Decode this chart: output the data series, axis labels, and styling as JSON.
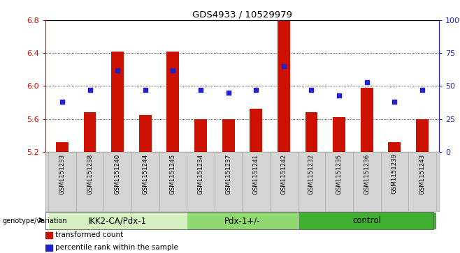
{
  "title": "GDS4933 / 10529979",
  "samples": [
    "GSM1151233",
    "GSM1151238",
    "GSM1151240",
    "GSM1151244",
    "GSM1151245",
    "GSM1151234",
    "GSM1151237",
    "GSM1151241",
    "GSM1151242",
    "GSM1151232",
    "GSM1151235",
    "GSM1151236",
    "GSM1151239",
    "GSM1151243"
  ],
  "transformed_count": [
    5.32,
    5.68,
    6.42,
    5.65,
    6.42,
    5.6,
    5.6,
    5.72,
    6.8,
    5.68,
    5.62,
    5.98,
    5.32,
    5.6
  ],
  "percentile_rank": [
    38,
    47,
    62,
    47,
    62,
    47,
    45,
    47,
    65,
    47,
    43,
    53,
    38,
    47
  ],
  "groups": [
    {
      "label": "IKK2-CA/Pdx-1",
      "start": 0,
      "end": 5,
      "color": "#d4f0c0"
    },
    {
      "label": "Pdx-1+/-",
      "start": 5,
      "end": 9,
      "color": "#90d870"
    },
    {
      "label": "control",
      "start": 9,
      "end": 14,
      "color": "#40b030"
    }
  ],
  "ymin": 5.2,
  "ymax": 6.8,
  "yticks": [
    5.2,
    5.6,
    6.0,
    6.4,
    6.8
  ],
  "y2ticks": [
    0,
    25,
    50,
    75,
    100
  ],
  "bar_color": "#cc1100",
  "dot_color": "#2222cc",
  "ylabel_color": "#cc1100",
  "y2label_color": "#2222cc",
  "legend_red_label": "transformed count",
  "legend_blue_label": "percentile rank within the sample",
  "genotype_label": "genotype/variation",
  "bar_width": 0.45,
  "sample_box_color": "#d4d4d4",
  "sample_box_border": "#aaaaaa"
}
